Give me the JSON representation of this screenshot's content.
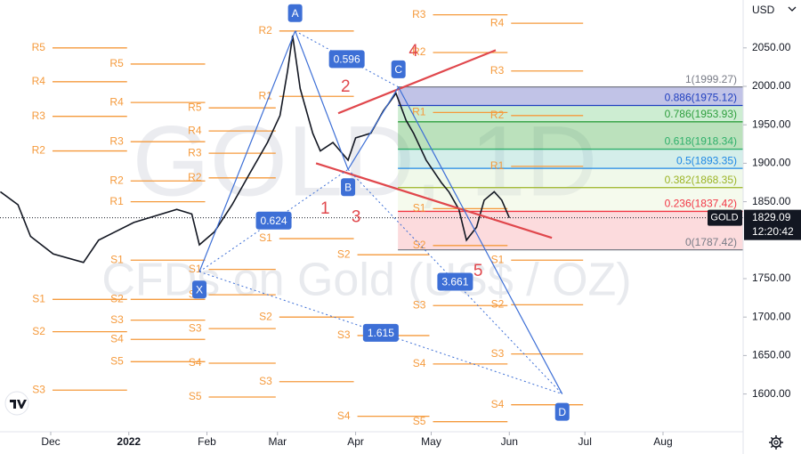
{
  "chart_data": {
    "type": "line",
    "watermark": "GOLD, 1D",
    "watermark_subtitle": "CFDs on Gold (US$ / OZ)",
    "currency": "USD",
    "countdown": "12:20:42",
    "x": [
      -20,
      -13,
      -8,
      1,
      13,
      19,
      33,
      50,
      56,
      59,
      65,
      72,
      79,
      86,
      91,
      94,
      96,
      99,
      104,
      107,
      112,
      118,
      121,
      127,
      132,
      137,
      141,
      144,
      149,
      155,
      158,
      162,
      165,
      169,
      172,
      176,
      179,
      182
    ],
    "series": [
      {
        "name": "GOLD",
        "color": "#131722",
        "values": [
          1863,
          1846,
          1805,
          1782,
          1771,
          1800,
          1823,
          1840,
          1834,
          1794,
          1811,
          1846,
          1887,
          1927,
          1962,
          2020,
          2066,
          1997,
          1939,
          1916,
          1927,
          1904,
          1933,
          1939,
          1968,
          1991,
          1956,
          1939,
          1904,
          1875,
          1863,
          1840,
          1800,
          1817,
          1852,
          1863,
          1852,
          1829.09
        ]
      }
    ],
    "xlim": [
      -20.13,
      274.8
    ],
    "ylim": [
      1550.9,
      2112.27
    ],
    "xticks": [
      {
        "value": 0,
        "label": "Dec"
      },
      {
        "value": 31,
        "label": "2022"
      },
      {
        "value": 62,
        "label": "Feb"
      },
      {
        "value": 90,
        "label": "Mar"
      },
      {
        "value": 121,
        "label": "Apr"
      },
      {
        "value": 151,
        "label": "May"
      },
      {
        "value": 182,
        "label": "Jun"
      },
      {
        "value": 212,
        "label": "Jul"
      },
      {
        "value": 243,
        "label": "Aug"
      }
    ],
    "yticks": [
      {
        "value": 1600,
        "label": "1600.00"
      },
      {
        "value": 1650,
        "label": "1650.00"
      },
      {
        "value": 1700,
        "label": "1700.00"
      },
      {
        "value": 1750,
        "label": "1750.00"
      },
      {
        "value": 1850,
        "label": "1850.00"
      },
      {
        "value": 1900,
        "label": "1900.00"
      },
      {
        "value": 1950,
        "label": "1950.00"
      },
      {
        "value": 2000,
        "label": "2000.00"
      },
      {
        "value": 2050,
        "label": "2050.00"
      }
    ],
    "fib": {
      "x": [
        137.8,
        274.8
      ],
      "levels": [
        {
          "label": "1(1999.27)",
          "value": 1999.27,
          "color": "#787b86",
          "fill": "#5c62c0"
        },
        {
          "label": "0.886(1975.12)",
          "value": 1975.12,
          "color": "#1f3fbf",
          "fill": "#7ccf8a"
        },
        {
          "label": "0.786(1953.93)",
          "value": 1953.93,
          "color": "#2e9e3e",
          "fill": "#4caf50"
        },
        {
          "label": "0.618(1918.34)",
          "value": 1918.34,
          "color": "#2eaf6a",
          "fill": "#8fd3c8"
        },
        {
          "label": "0.5(1893.35)",
          "value": 1893.35,
          "color": "#1e88e5",
          "fill": "#d8eec8"
        },
        {
          "label": "0.382(1868.35)",
          "value": 1868.35,
          "color": "#9cb426",
          "fill": "#e6f2d0"
        },
        {
          "label": "0.236(1837.42)",
          "value": 1837.42,
          "color": "#f23645",
          "fill": "#f7a1a6"
        },
        {
          "label": "0(1787.42)",
          "value": 1787.42,
          "color": "#787b86"
        }
      ]
    },
    "pivot_color": "#f59a3c",
    "pivots": [
      {
        "x": [
          0,
          31
        ],
        "levels": [
          {
            "label": "R5",
            "value": 2050
          },
          {
            "label": "R4",
            "value": 2006
          },
          {
            "label": "R3",
            "value": 1961
          },
          {
            "label": "R2",
            "value": 1916
          },
          {
            "label": "S1",
            "value": 1723
          },
          {
            "label": "S2",
            "value": 1681
          },
          {
            "label": "S3",
            "value": 1605
          }
        ]
      },
      {
        "x": [
          31,
          62
        ],
        "levels": [
          {
            "label": "R5",
            "value": 2029
          },
          {
            "label": "R4",
            "value": 1979
          },
          {
            "label": "R3",
            "value": 1928
          },
          {
            "label": "R2",
            "value": 1877
          },
          {
            "label": "R1",
            "value": 1850
          },
          {
            "label": "S1",
            "value": 1774
          },
          {
            "label": "S2",
            "value": 1723
          },
          {
            "label": "S3",
            "value": 1696
          },
          {
            "label": "S4",
            "value": 1671
          },
          {
            "label": "S5",
            "value": 1642
          }
        ]
      },
      {
        "x": [
          62,
          90
        ],
        "levels": [
          {
            "label": "R5",
            "value": 1972
          },
          {
            "label": "R4",
            "value": 1942
          },
          {
            "label": "R3",
            "value": 1913
          },
          {
            "label": "R2",
            "value": 1881
          },
          {
            "label": "S1",
            "value": 1762
          },
          {
            "label": "S2",
            "value": 1729
          },
          {
            "label": "S3",
            "value": 1685
          },
          {
            "label": "S4",
            "value": 1640
          },
          {
            "label": "S5",
            "value": 1596
          }
        ]
      },
      {
        "x": [
          90,
          121
        ],
        "levels": [
          {
            "label": "R2",
            "value": 2072
          },
          {
            "label": "R1",
            "value": 1987
          },
          {
            "label": "S1",
            "value": 1802
          },
          {
            "label": "S2",
            "value": 1700
          },
          {
            "label": "S3",
            "value": 1616
          }
        ]
      },
      {
        "x": [
          121,
          151
        ],
        "levels": [
          {
            "label": "S2",
            "value": 1781
          },
          {
            "label": "S3",
            "value": 1676
          },
          {
            "label": "S4",
            "value": 1571
          }
        ]
      },
      {
        "x": [
          151,
          182
        ],
        "levels": [
          {
            "label": "R3",
            "value": 2093
          },
          {
            "label": "R2",
            "value": 2044
          },
          {
            "label": "R1",
            "value": 1966
          },
          {
            "label": "S1",
            "value": 1841
          },
          {
            "label": "S2",
            "value": 1793
          },
          {
            "label": "S3",
            "value": 1715
          },
          {
            "label": "S4",
            "value": 1639
          },
          {
            "label": "S5",
            "value": 1564
          }
        ]
      },
      {
        "x": [
          182,
          212
        ],
        "levels": [
          {
            "label": "R4",
            "value": 2082
          },
          {
            "label": "R3",
            "value": 2020
          },
          {
            "label": "R2",
            "value": 1962
          },
          {
            "label": "R1",
            "value": 1896
          },
          {
            "label": "S1",
            "value": 1774
          },
          {
            "label": "S2",
            "value": 1716
          },
          {
            "label": "S3",
            "value": 1652
          },
          {
            "label": "S4",
            "value": 1586
          }
        ]
      }
    ],
    "pattern": {
      "color": "#3d6fd6",
      "points": [
        {
          "label": "X",
          "x": 59,
          "y": 1759
        },
        {
          "label": "A",
          "x": 97,
          "y": 2072
        },
        {
          "label": "B",
          "x": 118,
          "y": 1892
        },
        {
          "label": "C",
          "x": 138,
          "y": 1999
        },
        {
          "label": "D",
          "x": 203,
          "y": 1600
        }
      ],
      "ratios": [
        {
          "value": 0.596,
          "between": [
            1,
            3
          ]
        },
        {
          "value": 0.624,
          "between": [
            0,
            2
          ]
        },
        {
          "value": 1.615,
          "between": [
            0,
            4
          ]
        },
        {
          "value": 3.661,
          "between": [
            2,
            4
          ]
        }
      ]
    },
    "waves": {
      "color": "#e0474c",
      "labels": [
        {
          "text": 1,
          "x": 108.9,
          "y": 1840
        },
        {
          "text": 2,
          "x": 117,
          "y": 1999
        },
        {
          "text": 3,
          "x": 121.2,
          "y": 1829
        },
        {
          "text": 4,
          "x": 144,
          "y": 2045
        },
        {
          "text": 5,
          "x": 169.6,
          "y": 1759
        }
      ],
      "lines": [
        {
          "x": [
            114.1,
            176.6
          ],
          "y": [
            1965,
            2047
          ]
        },
        {
          "x": [
            105.3,
            198.9
          ],
          "y": [
            1900,
            1803
          ]
        }
      ]
    }
  }
}
